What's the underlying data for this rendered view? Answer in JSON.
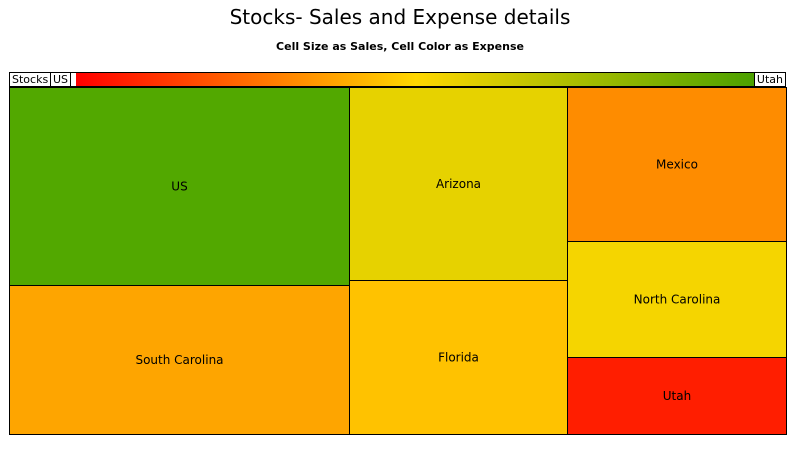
{
  "chart_data": {
    "type": "treemap",
    "title": "Stocks- Sales and Expense details",
    "subtitle": "Cell Size as Sales, Cell Color as Expense",
    "breadcrumb": [
      "Stocks",
      "US"
    ],
    "color_scale": {
      "colors": [
        "#ff0000",
        "#ffd700",
        "#4aa000"
      ],
      "max_label": "Utah"
    },
    "columns": [
      {
        "weight": 340,
        "cells": [
          {
            "name": "US",
            "weight": 198,
            "color": "#52a800"
          },
          {
            "name": "South Carolina",
            "weight": 149,
            "color": "#fea500"
          }
        ]
      },
      {
        "weight": 218,
        "cells": [
          {
            "name": "Arizona",
            "weight": 193,
            "color": "#e6d200"
          },
          {
            "name": "Florida",
            "weight": 154,
            "color": "#ffc200"
          }
        ]
      },
      {
        "weight": 219,
        "cells": [
          {
            "name": "Mexico",
            "weight": 154,
            "color": "#fe8c00"
          },
          {
            "name": "North Carolina",
            "weight": 116,
            "color": "#f5d500"
          },
          {
            "name": "Utah",
            "weight": 77,
            "color": "#ff1e00"
          }
        ]
      }
    ]
  }
}
